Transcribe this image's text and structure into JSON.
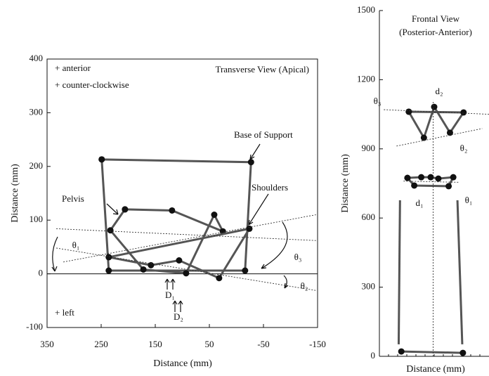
{
  "chart_data": [
    {
      "type": "line",
      "xlabel": "Distance (mm)",
      "ylabel": "Distance (mm)",
      "xlim": [
        350,
        -150
      ],
      "ylim": [
        -100,
        400
      ],
      "xticks": [
        350,
        250,
        150,
        50,
        -50,
        -150
      ],
      "yticks": [
        -100,
        0,
        100,
        200,
        300,
        400
      ],
      "annotations": [
        "+ anterior",
        "+ counter-clockwise",
        "Transverse View (Apical)",
        "Base of Support",
        "Shoulders",
        "Pelvis",
        "θ₁",
        "θ₃",
        "θ₂",
        "D₁",
        "D₂",
        "+ left"
      ],
      "series": [
        {
          "x": [
            249,
            -27,
            -16,
            236,
            249
          ],
          "values": [
            213,
            208,
            6,
            6,
            213
          ],
          "color": "#555555",
          "markers": true,
          "dash": false
        },
        {
          "x": [
            206,
            233,
            172,
            93,
            41,
            25,
            119,
            206
          ],
          "values": [
            120,
            81,
            8,
            1,
            110,
            79,
            118,
            120
          ],
          "color": "#555555",
          "markers": true,
          "dash": false
        },
        {
          "x": [
            236,
            -24,
            32,
            106,
            158,
            236
          ],
          "values": [
            31,
            84,
            -8,
            25,
            16,
            31
          ],
          "color": "#555555",
          "markers": true,
          "dash": false
        },
        {
          "x": [
            333,
            -147
          ],
          "values": [
            84,
            62
          ],
          "color": "#333333",
          "markers": false,
          "dash": true
        },
        {
          "x": [
            320,
            -147
          ],
          "values": [
            22,
            110
          ],
          "color": "#333333",
          "markers": false,
          "dash": true
        },
        {
          "x": [
            333,
            -147
          ],
          "values": [
            48,
            -31
          ],
          "color": "#333333",
          "markers": false,
          "dash": true
        }
      ]
    },
    {
      "type": "line",
      "xlabel": "Distance (mm)",
      "ylabel": "Distance (mm)",
      "xlim": [
        -250,
        250
      ],
      "ylim": [
        0,
        1500
      ],
      "yticks": [
        0,
        300,
        600,
        900,
        1200,
        1500
      ],
      "annotations": [
        "Frontal View",
        "(Posterior-Anterior)",
        "θ₃",
        "θ₂",
        "d₂",
        "d₁",
        "θ₁"
      ],
      "series": [
        {
          "x": [
            -116,
            -47,
            0,
            72,
            134,
            -116
          ],
          "values": [
            1061,
            948,
            1082,
            970,
            1058,
            1061
          ],
          "color": "#555555",
          "markers": true,
          "dash": false
        },
        {
          "x": [
            -122,
            -59,
            -16,
            19,
            87,
            66,
            -91,
            -122
          ],
          "values": [
            774,
            777,
            777,
            771,
            777,
            738,
            741,
            774
          ],
          "color": "#555555",
          "markers": true,
          "dash": false
        },
        {
          "x": [
            -150,
            131
          ],
          "values": [
            21,
            15
          ],
          "color": "#555555",
          "markers": true,
          "dash": false
        },
        {
          "x": [
            -156,
            -162
          ],
          "values": [
            677,
            52
          ],
          "color": "#555555",
          "markers": false,
          "dash": false
        },
        {
          "x": [
            106,
            128
          ],
          "values": [
            677,
            52
          ],
          "color": "#555555",
          "markers": false,
          "dash": false
        },
        {
          "x": [
            -230,
            250
          ],
          "values": [
            1070,
            1050
          ],
          "color": "#333333",
          "markers": false,
          "dash": true
        },
        {
          "x": [
            -172,
            219
          ],
          "values": [
            912,
            988
          ],
          "color": "#333333",
          "markers": false,
          "dash": true
        },
        {
          "x": [
            -5,
            -5
          ],
          "values": [
            0,
            1110
          ],
          "color": "#333333",
          "markers": false,
          "dash": true
        },
        {
          "x": [
            -140,
            110
          ],
          "values": [
            760,
            755
          ],
          "color": "#333333",
          "markers": false,
          "dash": true
        }
      ]
    }
  ]
}
